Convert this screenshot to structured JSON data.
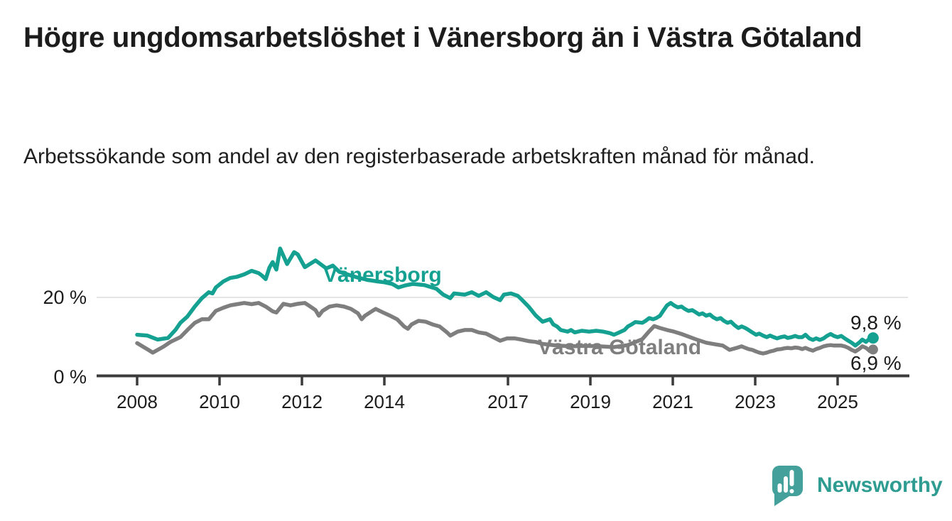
{
  "title": "Högre ungdomsarbetslöshet i Vänersborg än i Västra Götaland",
  "subtitle": "Arbetssökande som andel av den registerbaserade arbetskraften månad för månad.",
  "branding": {
    "logo_text": "Newsworthy",
    "logo_icon": "newsworthy-speech-bubble-bar-chart-icon",
    "logo_bubble_color": "#43a09a",
    "logo_text_color": "#2f9c92"
  },
  "chart_data": {
    "type": "line",
    "title": "Högre ungdomsarbetslöshet i Vänersborg än i Västra Götaland",
    "subtitle": "Arbetssökande som andel av den registerbaserade arbetskraften månad för månad.",
    "x_unit": "year (monthly data)",
    "xlim": [
      2007.9,
      2026.1
    ],
    "ylim": [
      0,
      34
    ],
    "grid": "horizontal-20-only",
    "legend_position": "inline-labels-on-lines",
    "axis": {
      "x_ticks": [
        2008,
        2010,
        2012,
        2014,
        2017,
        2019,
        2021,
        2023,
        2025
      ],
      "y_ticks": [
        {
          "value": 0,
          "label": "0 %"
        },
        {
          "value": 20,
          "label": "20 %"
        }
      ]
    },
    "series": [
      {
        "name": "Vänersborg",
        "color": "#15a191",
        "end_label": "9,8 %",
        "end_value": 9.8,
        "points": [
          [
            2008.0,
            10.6
          ],
          [
            2008.25,
            10.4
          ],
          [
            2008.5,
            9.4
          ],
          [
            2008.75,
            9.8
          ],
          [
            2008.93,
            11.8
          ],
          [
            2009.05,
            13.6
          ],
          [
            2009.22,
            15.2
          ],
          [
            2009.4,
            17.7
          ],
          [
            2009.57,
            19.8
          ],
          [
            2009.74,
            21.3
          ],
          [
            2009.83,
            21.0
          ],
          [
            2009.91,
            22.5
          ],
          [
            2010.09,
            24.0
          ],
          [
            2010.26,
            24.9
          ],
          [
            2010.43,
            25.2
          ],
          [
            2010.6,
            25.8
          ],
          [
            2010.78,
            26.7
          ],
          [
            2010.95,
            26.1
          ],
          [
            2011.03,
            25.5
          ],
          [
            2011.12,
            24.6
          ],
          [
            2011.21,
            27.5
          ],
          [
            2011.29,
            28.9
          ],
          [
            2011.38,
            27.0
          ],
          [
            2011.47,
            32.3
          ],
          [
            2011.64,
            28.4
          ],
          [
            2011.81,
            31.4
          ],
          [
            2011.9,
            30.8
          ],
          [
            2012.07,
            27.6
          ],
          [
            2012.33,
            29.3
          ],
          [
            2012.59,
            27.3
          ],
          [
            2012.75,
            28.0
          ],
          [
            2012.9,
            26.5
          ],
          [
            2013.1,
            25.8
          ],
          [
            2013.35,
            25.0
          ],
          [
            2013.6,
            24.4
          ],
          [
            2013.85,
            24.0
          ],
          [
            2014.0,
            23.8
          ],
          [
            2014.19,
            23.4
          ],
          [
            2014.34,
            22.5
          ],
          [
            2014.5,
            23.0
          ],
          [
            2014.69,
            23.4
          ],
          [
            2014.97,
            23.1
          ],
          [
            2015.26,
            22.2
          ],
          [
            2015.43,
            20.7
          ],
          [
            2015.6,
            19.8
          ],
          [
            2015.69,
            21.0
          ],
          [
            2015.95,
            20.7
          ],
          [
            2016.12,
            21.3
          ],
          [
            2016.29,
            20.4
          ],
          [
            2016.47,
            21.3
          ],
          [
            2016.64,
            20.1
          ],
          [
            2016.81,
            19.3
          ],
          [
            2016.9,
            20.7
          ],
          [
            2017.07,
            21.0
          ],
          [
            2017.24,
            20.4
          ],
          [
            2017.33,
            19.5
          ],
          [
            2017.5,
            17.7
          ],
          [
            2017.67,
            15.5
          ],
          [
            2017.84,
            13.9
          ],
          [
            2018.02,
            14.5
          ],
          [
            2018.1,
            13.2
          ],
          [
            2018.19,
            12.7
          ],
          [
            2018.28,
            11.8
          ],
          [
            2018.45,
            11.4
          ],
          [
            2018.53,
            11.8
          ],
          [
            2018.62,
            11.2
          ],
          [
            2018.79,
            11.6
          ],
          [
            2018.97,
            11.4
          ],
          [
            2019.14,
            11.6
          ],
          [
            2019.31,
            11.4
          ],
          [
            2019.48,
            11.0
          ],
          [
            2019.57,
            10.6
          ],
          [
            2019.66,
            11.0
          ],
          [
            2019.83,
            11.8
          ],
          [
            2019.91,
            12.7
          ],
          [
            2020.0,
            13.2
          ],
          [
            2020.09,
            13.8
          ],
          [
            2020.26,
            13.6
          ],
          [
            2020.34,
            14.1
          ],
          [
            2020.43,
            14.8
          ],
          [
            2020.52,
            14.5
          ],
          [
            2020.6,
            14.8
          ],
          [
            2020.69,
            15.4
          ],
          [
            2020.78,
            16.8
          ],
          [
            2020.86,
            18.0
          ],
          [
            2020.95,
            18.6
          ],
          [
            2021.03,
            18.0
          ],
          [
            2021.12,
            17.5
          ],
          [
            2021.21,
            17.7
          ],
          [
            2021.29,
            17.1
          ],
          [
            2021.38,
            16.6
          ],
          [
            2021.47,
            16.8
          ],
          [
            2021.55,
            16.3
          ],
          [
            2021.64,
            15.7
          ],
          [
            2021.72,
            16.0
          ],
          [
            2021.81,
            15.4
          ],
          [
            2021.9,
            15.7
          ],
          [
            2021.98,
            15.0
          ],
          [
            2022.07,
            14.5
          ],
          [
            2022.16,
            14.8
          ],
          [
            2022.24,
            14.1
          ],
          [
            2022.33,
            13.6
          ],
          [
            2022.41,
            13.9
          ],
          [
            2022.5,
            13.0
          ],
          [
            2022.59,
            12.3
          ],
          [
            2022.67,
            12.7
          ],
          [
            2022.76,
            12.3
          ],
          [
            2022.84,
            11.8
          ],
          [
            2022.93,
            11.2
          ],
          [
            2023.02,
            10.6
          ],
          [
            2023.1,
            10.9
          ],
          [
            2023.19,
            10.4
          ],
          [
            2023.28,
            10.0
          ],
          [
            2023.36,
            10.4
          ],
          [
            2023.45,
            10.0
          ],
          [
            2023.53,
            9.7
          ],
          [
            2023.62,
            10.0
          ],
          [
            2023.71,
            10.2
          ],
          [
            2023.79,
            9.8
          ],
          [
            2023.88,
            10.0
          ],
          [
            2023.97,
            10.3
          ],
          [
            2024.05,
            10.0
          ],
          [
            2024.14,
            10.0
          ],
          [
            2024.22,
            10.6
          ],
          [
            2024.31,
            9.7
          ],
          [
            2024.4,
            9.3
          ],
          [
            2024.48,
            9.7
          ],
          [
            2024.57,
            9.3
          ],
          [
            2024.66,
            9.7
          ],
          [
            2024.74,
            10.3
          ],
          [
            2024.83,
            10.8
          ],
          [
            2024.91,
            10.3
          ],
          [
            2025.0,
            10.0
          ],
          [
            2025.09,
            10.3
          ],
          [
            2025.17,
            9.7
          ],
          [
            2025.26,
            9.1
          ],
          [
            2025.34,
            8.6
          ],
          [
            2025.43,
            7.9
          ],
          [
            2025.52,
            8.6
          ],
          [
            2025.6,
            9.4
          ],
          [
            2025.69,
            8.8
          ],
          [
            2025.78,
            9.7
          ],
          [
            2025.86,
            9.8
          ]
        ]
      },
      {
        "name": "Västra Götaland",
        "color": "#7e7e7e",
        "end_label": "6,9 %",
        "end_value": 6.9,
        "points": [
          [
            2008.0,
            8.5
          ],
          [
            2008.29,
            6.7
          ],
          [
            2008.38,
            6.1
          ],
          [
            2008.64,
            7.6
          ],
          [
            2008.81,
            8.8
          ],
          [
            2009.05,
            10.0
          ],
          [
            2009.22,
            11.8
          ],
          [
            2009.4,
            13.6
          ],
          [
            2009.57,
            14.5
          ],
          [
            2009.74,
            14.5
          ],
          [
            2009.91,
            16.6
          ],
          [
            2010.09,
            17.4
          ],
          [
            2010.26,
            18.0
          ],
          [
            2010.43,
            18.3
          ],
          [
            2010.6,
            18.6
          ],
          [
            2010.78,
            18.3
          ],
          [
            2010.95,
            18.6
          ],
          [
            2011.12,
            17.7
          ],
          [
            2011.29,
            16.5
          ],
          [
            2011.38,
            16.2
          ],
          [
            2011.55,
            18.4
          ],
          [
            2011.72,
            18.0
          ],
          [
            2011.9,
            18.4
          ],
          [
            2012.07,
            18.6
          ],
          [
            2012.16,
            18.0
          ],
          [
            2012.33,
            16.8
          ],
          [
            2012.41,
            15.4
          ],
          [
            2012.5,
            16.6
          ],
          [
            2012.67,
            17.7
          ],
          [
            2012.84,
            18.0
          ],
          [
            2013.02,
            17.7
          ],
          [
            2013.19,
            17.1
          ],
          [
            2013.36,
            16.0
          ],
          [
            2013.45,
            14.5
          ],
          [
            2013.53,
            15.4
          ],
          [
            2013.71,
            16.6
          ],
          [
            2013.79,
            17.1
          ],
          [
            2013.97,
            16.2
          ],
          [
            2014.14,
            15.4
          ],
          [
            2014.31,
            14.5
          ],
          [
            2014.48,
            12.7
          ],
          [
            2014.57,
            12.1
          ],
          [
            2014.66,
            13.2
          ],
          [
            2014.83,
            14.1
          ],
          [
            2015.0,
            13.9
          ],
          [
            2015.17,
            13.2
          ],
          [
            2015.34,
            12.7
          ],
          [
            2015.52,
            11.2
          ],
          [
            2015.6,
            10.4
          ],
          [
            2015.78,
            11.4
          ],
          [
            2015.95,
            11.8
          ],
          [
            2016.12,
            11.8
          ],
          [
            2016.29,
            11.2
          ],
          [
            2016.47,
            10.9
          ],
          [
            2016.64,
            10.0
          ],
          [
            2016.81,
            9.1
          ],
          [
            2016.98,
            9.7
          ],
          [
            2017.16,
            9.7
          ],
          [
            2017.33,
            9.4
          ],
          [
            2017.5,
            9.0
          ],
          [
            2017.67,
            8.8
          ],
          [
            2017.84,
            8.3
          ],
          [
            2018.19,
            7.9
          ],
          [
            2018.53,
            7.7
          ],
          [
            2018.88,
            7.8
          ],
          [
            2019.22,
            7.7
          ],
          [
            2019.57,
            7.5
          ],
          [
            2019.91,
            8.0
          ],
          [
            2020.26,
            9.5
          ],
          [
            2020.43,
            11.5
          ],
          [
            2020.55,
            12.8
          ],
          [
            2020.69,
            12.3
          ],
          [
            2020.86,
            11.8
          ],
          [
            2021.03,
            11.4
          ],
          [
            2021.21,
            10.8
          ],
          [
            2021.55,
            9.5
          ],
          [
            2021.81,
            8.6
          ],
          [
            2022.03,
            8.2
          ],
          [
            2022.21,
            7.9
          ],
          [
            2022.38,
            6.8
          ],
          [
            2022.55,
            7.3
          ],
          [
            2022.67,
            7.7
          ],
          [
            2022.76,
            7.3
          ],
          [
            2022.84,
            7.0
          ],
          [
            2022.93,
            6.8
          ],
          [
            2023.02,
            6.4
          ],
          [
            2023.1,
            6.1
          ],
          [
            2023.19,
            5.9
          ],
          [
            2023.28,
            6.1
          ],
          [
            2023.36,
            6.4
          ],
          [
            2023.45,
            6.6
          ],
          [
            2023.53,
            6.9
          ],
          [
            2023.62,
            7.0
          ],
          [
            2023.71,
            7.2
          ],
          [
            2023.79,
            7.3
          ],
          [
            2023.88,
            7.2
          ],
          [
            2023.97,
            7.4
          ],
          [
            2024.05,
            7.3
          ],
          [
            2024.14,
            7.0
          ],
          [
            2024.22,
            7.3
          ],
          [
            2024.31,
            6.9
          ],
          [
            2024.4,
            6.6
          ],
          [
            2024.48,
            7.0
          ],
          [
            2024.57,
            7.3
          ],
          [
            2024.66,
            7.7
          ],
          [
            2024.74,
            7.9
          ],
          [
            2024.83,
            8.0
          ],
          [
            2024.91,
            7.9
          ],
          [
            2025.0,
            7.9
          ],
          [
            2025.09,
            7.9
          ],
          [
            2025.17,
            7.7
          ],
          [
            2025.26,
            7.3
          ],
          [
            2025.34,
            6.8
          ],
          [
            2025.43,
            6.4
          ],
          [
            2025.52,
            7.0
          ],
          [
            2025.6,
            7.7
          ],
          [
            2025.69,
            7.3
          ],
          [
            2025.78,
            6.5
          ],
          [
            2025.86,
            6.9
          ]
        ]
      }
    ]
  }
}
